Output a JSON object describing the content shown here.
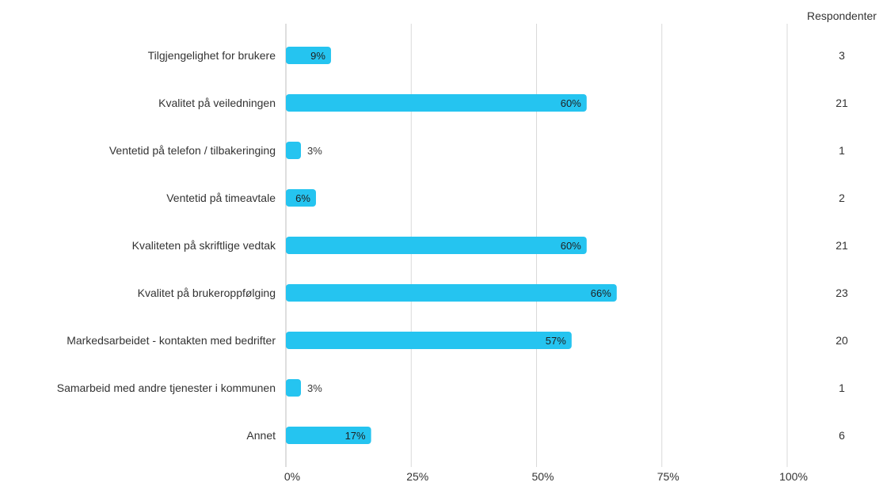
{
  "chart_data": {
    "type": "bar",
    "orientation": "horizontal",
    "categories": [
      "Tilgjengelighet for brukere",
      "Kvalitet på veiledningen",
      "Ventetid på telefon / tilbakeringing",
      "Ventetid på timeavtale",
      "Kvaliteten på skriftlige vedtak",
      "Kvalitet på brukeroppfølging",
      "Markedsarbeidet - kontakten med bedrifter",
      "Samarbeid med andre tjenester i kommunen",
      "Annet"
    ],
    "values": [
      9,
      60,
      3,
      6,
      60,
      66,
      57,
      3,
      17
    ],
    "value_labels": [
      "9%",
      "60%",
      "3%",
      "6%",
      "60%",
      "66%",
      "57%",
      "3%",
      "17%"
    ],
    "respondents_header": "Respondenter",
    "respondents": [
      "3",
      "21",
      "1",
      "2",
      "21",
      "23",
      "20",
      "1",
      "6"
    ],
    "x_ticks": [
      0,
      25,
      50,
      75,
      100
    ],
    "x_tick_labels": [
      "0%",
      "25%",
      "50%",
      "75%",
      "100%"
    ],
    "xlim": [
      0,
      100
    ],
    "grid": true,
    "colors": {
      "bar": "#25c4f0",
      "grid": "#d9d9d9",
      "axis": "#bdbdbd",
      "text": "#333333",
      "label_inside": "#1f1f1f",
      "label_outside": "#3a3a3a"
    }
  }
}
